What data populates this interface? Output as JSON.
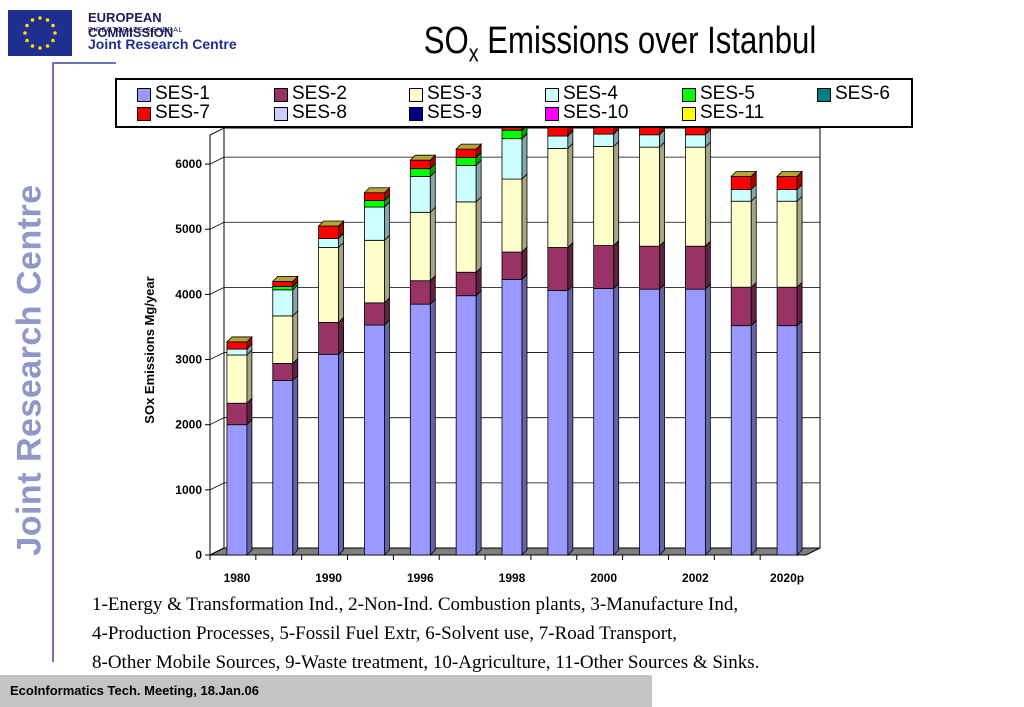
{
  "logo": {
    "line1": "EUROPEAN COMMISSION",
    "line2": "DIRECTORATE-GENERAL",
    "line3": "Joint Research Centre"
  },
  "side_text": "Joint Research Centre",
  "footer": "EcoInformatics Tech. Meeting, 18.Jan.06",
  "description": [
    "1-Energy & Transformation Ind., 2-Non-Ind. Combustion plants, 3-Manufacture Ind,",
    "4-Production Processes, 5-Fossil Fuel Extr, 6-Solvent use, 7-Road Transport,",
    "8-Other Mobile Sources, 9-Waste treatment, 10-Agriculture, 11-Other Sources & Sinks."
  ],
  "chart_data": {
    "type": "bar",
    "stacked": true,
    "title_main": "SO",
    "title_sub": "x",
    "title_rest": " Emissions over Istanbul",
    "ylabel": "SOx Emissions Mg/year",
    "xlabel": "",
    "ylim": [
      0,
      6600
    ],
    "yticks": [
      0,
      1000,
      2000,
      3000,
      4000,
      5000,
      6000
    ],
    "grid": true,
    "legend_position": "top",
    "x_tick_labels": [
      "1980",
      "1990",
      "1996",
      "1998",
      "2000",
      "2002",
      "2020p"
    ],
    "categories": [
      "1980",
      "",
      "1990",
      "",
      "1996",
      "",
      "1998",
      "",
      "2000",
      "",
      "2002",
      "",
      "2020p"
    ],
    "series": [
      {
        "name": "SES-1",
        "color": "#9999ff",
        "values": [
          2000,
          2680,
          3080,
          3530,
          3850,
          3980,
          4230,
          4060,
          4090,
          4080,
          4080,
          3520,
          3520
        ]
      },
      {
        "name": "SES-2",
        "color": "#993366",
        "values": [
          330,
          260,
          490,
          340,
          360,
          360,
          420,
          660,
          660,
          660,
          660,
          590,
          590
        ]
      },
      {
        "name": "SES-3",
        "color": "#ffffcc",
        "values": [
          740,
          730,
          1150,
          960,
          1050,
          1080,
          1120,
          1520,
          1520,
          1520,
          1520,
          1320,
          1320
        ]
      },
      {
        "name": "SES-4",
        "color": "#ccffff",
        "values": [
          90,
          400,
          140,
          510,
          550,
          560,
          620,
          190,
          190,
          190,
          190,
          180,
          180
        ]
      },
      {
        "name": "SES-5",
        "color": "#00ff00",
        "values": [
          0,
          50,
          0,
          100,
          120,
          120,
          130,
          0,
          0,
          0,
          0,
          0,
          0
        ]
      },
      {
        "name": "SES-6",
        "color": "#008080",
        "values": [
          0,
          0,
          0,
          0,
          0,
          0,
          0,
          0,
          0,
          0,
          0,
          0,
          0
        ]
      },
      {
        "name": "SES-7",
        "color": "#ff0000",
        "values": [
          110,
          80,
          190,
          120,
          130,
          130,
          140,
          240,
          240,
          240,
          240,
          200,
          200
        ]
      },
      {
        "name": "SES-8",
        "color": "#ccccff",
        "values": [
          0,
          0,
          0,
          0,
          0,
          0,
          0,
          0,
          0,
          0,
          0,
          0,
          0
        ]
      },
      {
        "name": "SES-9",
        "color": "#000080",
        "values": [
          0,
          0,
          0,
          0,
          0,
          0,
          0,
          0,
          0,
          0,
          0,
          0,
          0
        ]
      },
      {
        "name": "SES-10",
        "color": "#ff00ff",
        "values": [
          0,
          0,
          0,
          0,
          0,
          0,
          0,
          0,
          0,
          0,
          0,
          0,
          0
        ]
      },
      {
        "name": "SES-11",
        "color": "#ffff00",
        "values": [
          0,
          0,
          0,
          0,
          0,
          0,
          0,
          0,
          0,
          0,
          0,
          0,
          0
        ]
      }
    ]
  }
}
